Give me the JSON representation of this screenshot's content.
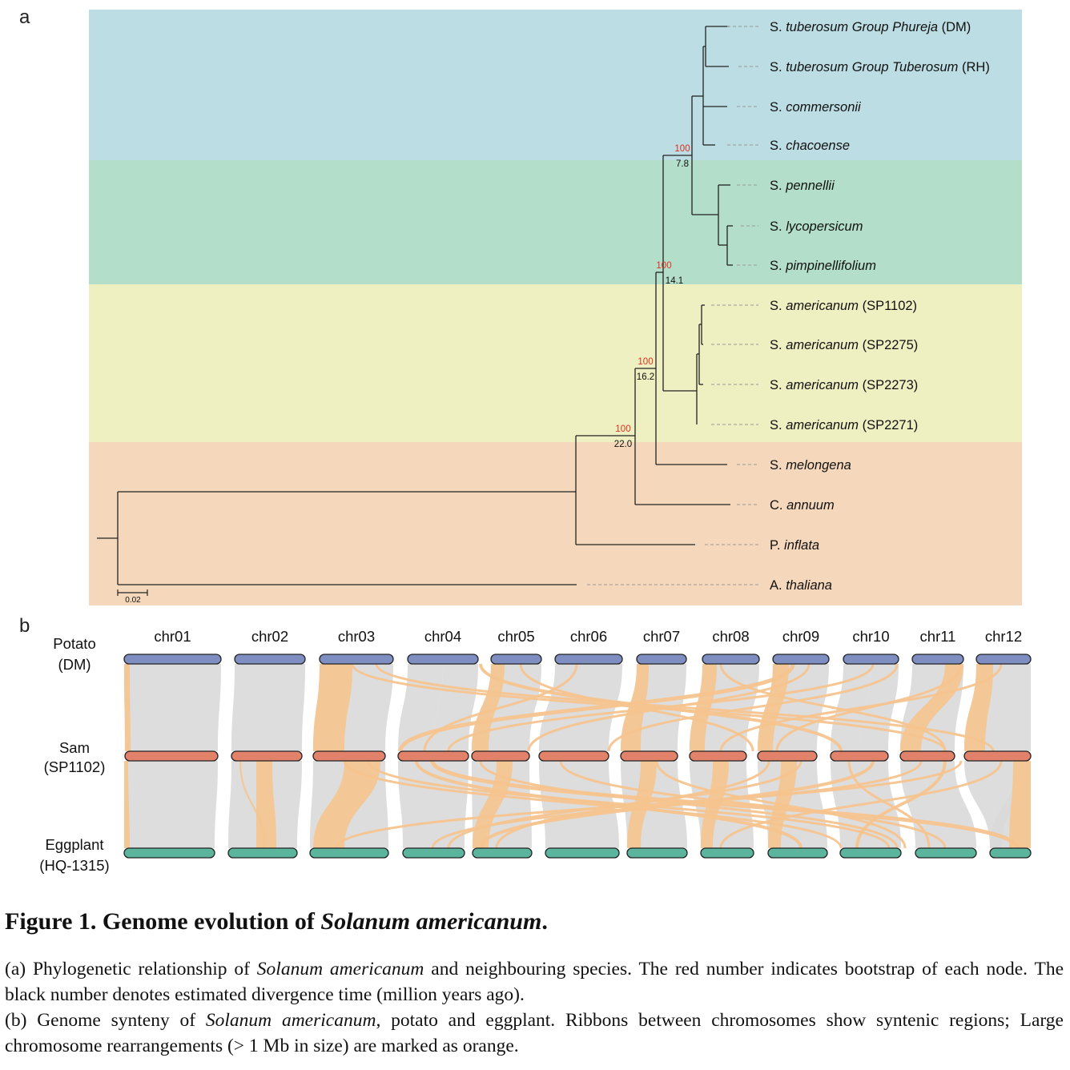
{
  "panel_a": {
    "label": "a",
    "colors": {
      "bands": [
        "#bcdde3",
        "#b3dfca",
        "#eff0c1",
        "#f5d8bb"
      ],
      "bootstrap": "#e0301e",
      "branch": "#222222",
      "leader": "#999999"
    },
    "taxa": [
      {
        "genus": "S.",
        "species": "tuberosum Group Phureja",
        "suffix": " (DM)"
      },
      {
        "genus": "S.",
        "species": "tuberosum Group Tuberosum",
        "suffix": " (RH)"
      },
      {
        "genus": "S.",
        "species": "commersonii",
        "suffix": ""
      },
      {
        "genus": "S.",
        "species": "chacoense",
        "suffix": ""
      },
      {
        "genus": "S.",
        "species": "pennellii",
        "suffix": ""
      },
      {
        "genus": "S.",
        "species": "lycopersicum",
        "suffix": ""
      },
      {
        "genus": "S.",
        "species": "pimpinellifolium",
        "suffix": ""
      },
      {
        "genus": "S.",
        "species": "americanum",
        "suffix": " (SP1102)"
      },
      {
        "genus": "S.",
        "species": "americanum",
        "suffix": " (SP2275)"
      },
      {
        "genus": "S.",
        "species": "americanum",
        "suffix": " (SP2273)"
      },
      {
        "genus": "S.",
        "species": "americanum",
        "suffix": " (SP2271)"
      },
      {
        "genus": "S.",
        "species": "melongena",
        "suffix": ""
      },
      {
        "genus": "C.",
        "species": "annuum",
        "suffix": ""
      },
      {
        "genus": "P.",
        "species": "inflata",
        "suffix": ""
      },
      {
        "genus": "A.",
        "species": "thaliana",
        "suffix": ""
      }
    ],
    "nodes": [
      {
        "bootstrap": "100",
        "time": "7.8"
      },
      {
        "bootstrap": "100",
        "time": "14.1"
      },
      {
        "bootstrap": "100",
        "time": "16.2"
      },
      {
        "bootstrap": "100",
        "time": "22.0"
      }
    ],
    "scale_bar": "0.02"
  },
  "panel_b": {
    "label": "b",
    "chromosomes": [
      "chr01",
      "chr02",
      "chr03",
      "chr04",
      "chr05",
      "chr06",
      "chr07",
      "chr08",
      "chr09",
      "chr10",
      "chr11",
      "chr12"
    ],
    "genomes": [
      {
        "name": "Potato",
        "accession": "(DM)",
        "color": "#7f8ec0"
      },
      {
        "name": "Sam",
        "accession": "(SP1102)",
        "color": "#e2826a"
      },
      {
        "name": "Eggplant",
        "accession": "(HQ-1315)",
        "color": "#5bb59c"
      }
    ],
    "colors": {
      "synteny": "#d9d9d9",
      "rearrangement": "#f5c48e"
    }
  },
  "caption": {
    "title_prefix": "Figure 1. Genome evolution of ",
    "title_species": "Solanum americanum",
    "title_end": ".",
    "a_prefix": "(a) Phylogenetic relationship of ",
    "a_species": "Solanum americanum",
    "a_rest": " and neighbouring species. The red number indicates bootstrap of each node. The black number denotes estimated divergence time (million years ago).",
    "b_prefix": "(b) Genome synteny of ",
    "b_species": "Solanum americanum",
    "b_rest": ", potato and eggplant. Ribbons between chromosomes show syntenic regions; Large chromosome rearrangements (> 1 Mb in size) are marked as orange."
  }
}
